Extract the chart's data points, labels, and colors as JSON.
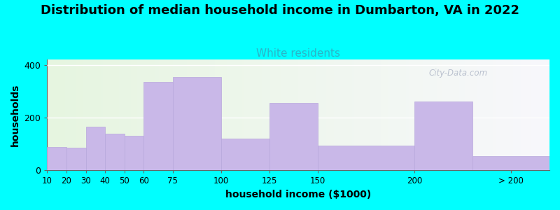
{
  "title": "Distribution of median household income in Dumbarton, VA in 2022",
  "subtitle": "White residents",
  "xlabel": "household income ($1000)",
  "ylabel": "households",
  "title_fontsize": 13,
  "subtitle_fontsize": 11,
  "subtitle_color": "#2ab5c8",
  "bar_color": "#c9b8e8",
  "bar_edge_color": "#b8a8dc",
  "background_color": "#00ffff",
  "plot_bg_left": "#e6f5e0",
  "plot_bg_right": "#f8f8fc",
  "bin_lefts": [
    10,
    20,
    30,
    40,
    50,
    60,
    75,
    100,
    125,
    150,
    200,
    230
  ],
  "bin_rights": [
    20,
    30,
    40,
    50,
    60,
    75,
    100,
    125,
    150,
    200,
    230,
    270
  ],
  "values": [
    90,
    85,
    165,
    140,
    130,
    335,
    355,
    120,
    255,
    95,
    260,
    55
  ],
  "tick_positions": [
    10,
    20,
    30,
    40,
    50,
    60,
    75,
    100,
    125,
    150,
    200
  ],
  "tick_labels": [
    "10",
    "20",
    "30",
    "40",
    "50",
    "60",
    "75",
    "100",
    "125",
    "150",
    "200"
  ],
  "gt200_tick": 250,
  "gt200_label": "> 200",
  "xlim": [
    10,
    270
  ],
  "ylim": [
    0,
    420
  ],
  "yticks": [
    0,
    200,
    400
  ],
  "watermark": "City-Data.com"
}
